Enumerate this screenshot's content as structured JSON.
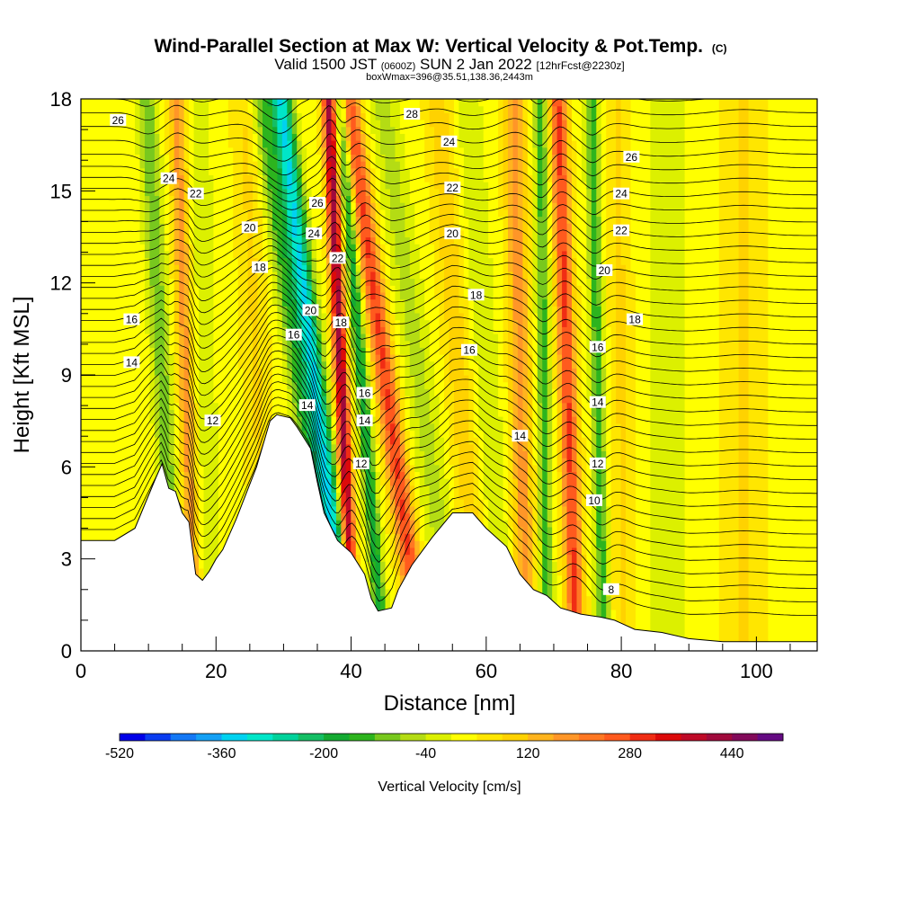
{
  "chart_data": {
    "type": "heatmap",
    "title": "Wind-Parallel Section at Max W: Vertical Velocity & Pot.Temp.",
    "title_mark": "(C)",
    "subtitle_main_a": "Valid 1500 JST",
    "subtitle_small_a": "(0600Z)",
    "subtitle_main_b": "SUN 2 Jan 2022",
    "subtitle_small_b": "[12hrFcst@2230z]",
    "subtitle2": "boxWmax=396@35.51,138.36,2443m",
    "xlabel": "Distance [nm]",
    "ylabel": "Height [Kft MSL]",
    "xlim": [
      0,
      109
    ],
    "ylim": [
      0,
      18
    ],
    "xticks": [
      0,
      20,
      40,
      60,
      80,
      100
    ],
    "yticks": [
      0,
      3,
      6,
      9,
      12,
      15,
      18
    ],
    "colorbar": {
      "label": "Vertical Velocity [cm/s]",
      "min": -520,
      "max": 520,
      "step": 40,
      "tick_labels": [
        "-520",
        "-360",
        "-200",
        "-40",
        "120",
        "280",
        "440"
      ],
      "colors": [
        "#0000e8",
        "#0a3cf0",
        "#1478f5",
        "#14a0f5",
        "#00d2f0",
        "#00e6c8",
        "#00d29b",
        "#14be64",
        "#14aa32",
        "#2db41e",
        "#78c81e",
        "#b4dc14",
        "#dcf000",
        "#ffff00",
        "#ffe600",
        "#ffd200",
        "#ffb41e",
        "#ff9628",
        "#ff7823",
        "#ff5a1e",
        "#f02d14",
        "#dc0a0a",
        "#be0a28",
        "#a00a3c",
        "#820a5a",
        "#640a82"
      ]
    },
    "terrain": [
      [
        0,
        3.6
      ],
      [
        5,
        3.6
      ],
      [
        8,
        4.0
      ],
      [
        11,
        5.6
      ],
      [
        12,
        6.1
      ],
      [
        13,
        5.3
      ],
      [
        14,
        5.2
      ],
      [
        15,
        4.5
      ],
      [
        16,
        4.2
      ],
      [
        17,
        2.5
      ],
      [
        18,
        2.3
      ],
      [
        19,
        2.6
      ],
      [
        20,
        3.0
      ],
      [
        21,
        3.3
      ],
      [
        23,
        4.3
      ],
      [
        26,
        6.0
      ],
      [
        28,
        7.5
      ],
      [
        29,
        7.7
      ],
      [
        31,
        7.6
      ],
      [
        32,
        7.3
      ],
      [
        34,
        6.6
      ],
      [
        35,
        5.5
      ],
      [
        36,
        4.5
      ],
      [
        38,
        3.6
      ],
      [
        40,
        3.2
      ],
      [
        42,
        2.5
      ],
      [
        43,
        1.7
      ],
      [
        44,
        1.3
      ],
      [
        46,
        1.4
      ],
      [
        47,
        2.0
      ],
      [
        49,
        2.8
      ],
      [
        52,
        3.7
      ],
      [
        55,
        4.5
      ],
      [
        58,
        4.5
      ],
      [
        60,
        4.0
      ],
      [
        63,
        3.4
      ],
      [
        65,
        2.5
      ],
      [
        67,
        2.0
      ],
      [
        69,
        1.8
      ],
      [
        71,
        1.4
      ],
      [
        74,
        1.2
      ],
      [
        77,
        1.1
      ],
      [
        79,
        1.0
      ],
      [
        80,
        0.9
      ],
      [
        82,
        0.7
      ],
      [
        86,
        0.6
      ],
      [
        90,
        0.4
      ],
      [
        95,
        0.3
      ],
      [
        100,
        0.3
      ],
      [
        105,
        0.3
      ],
      [
        109,
        0.3
      ]
    ],
    "w_features": [
      {
        "x": 12.0,
        "w": -140,
        "width": 1.4,
        "tilt": -0.25
      },
      {
        "x": 15.5,
        "w": 150,
        "width": 1.2,
        "tilt": -0.15
      },
      {
        "x": 18.5,
        "w": -60,
        "width": 1.5,
        "tilt": -0.1
      },
      {
        "x": 26.0,
        "w": 60,
        "width": 2.0,
        "tilt": -0.2
      },
      {
        "x": 32.0,
        "w": -150,
        "width": 1.5,
        "tilt": -0.6
      },
      {
        "x": 34.5,
        "w": -350,
        "width": 1.6,
        "tilt": -0.55
      },
      {
        "x": 38.5,
        "w": 400,
        "width": 1.0,
        "tilt": -0.2
      },
      {
        "x": 41.5,
        "w": -220,
        "width": 1.0,
        "tilt": -0.35
      },
      {
        "x": 45.0,
        "w": 260,
        "width": 1.6,
        "tilt": -0.6
      },
      {
        "x": 50.0,
        "w": -80,
        "width": 2.2,
        "tilt": -0.6
      },
      {
        "x": 56.0,
        "w": 80,
        "width": 2.0,
        "tilt": -0.35
      },
      {
        "x": 60.0,
        "w": -60,
        "width": 2.0,
        "tilt": -0.3
      },
      {
        "x": 65.0,
        "w": 150,
        "width": 1.6,
        "tilt": -0.1
      },
      {
        "x": 68.5,
        "w": -160,
        "width": 1.0,
        "tilt": -0.05
      },
      {
        "x": 72.0,
        "w": 260,
        "width": 1.3,
        "tilt": -0.15
      },
      {
        "x": 76.5,
        "w": -170,
        "width": 1.0,
        "tilt": -0.1
      },
      {
        "x": 80.0,
        "w": 60,
        "width": 1.8,
        "tilt": -0.05
      },
      {
        "x": 87.0,
        "w": -40,
        "width": 3.5,
        "tilt": 0.0
      },
      {
        "x": 98.0,
        "w": 60,
        "width": 3.0,
        "tilt": 0.0
      }
    ],
    "theta_labels": [
      {
        "text": "26",
        "x": 5.5,
        "y": 17.3
      },
      {
        "text": "24",
        "x": 13.0,
        "y": 15.4
      },
      {
        "text": "22",
        "x": 17.0,
        "y": 14.9
      },
      {
        "text": "20",
        "x": 25.0,
        "y": 13.8
      },
      {
        "text": "18",
        "x": 26.5,
        "y": 12.5
      },
      {
        "text": "16",
        "x": 7.5,
        "y": 10.8
      },
      {
        "text": "14",
        "x": 7.5,
        "y": 9.4
      },
      {
        "text": "12",
        "x": 19.5,
        "y": 7.5
      },
      {
        "text": "26",
        "x": 35.0,
        "y": 14.6
      },
      {
        "text": "24",
        "x": 34.5,
        "y": 13.6
      },
      {
        "text": "20",
        "x": 34.0,
        "y": 11.1
      },
      {
        "text": "16",
        "x": 31.5,
        "y": 10.3
      },
      {
        "text": "14",
        "x": 33.5,
        "y": 8.0
      },
      {
        "text": "22",
        "x": 38.0,
        "y": 12.8
      },
      {
        "text": "18",
        "x": 38.5,
        "y": 10.7
      },
      {
        "text": "16",
        "x": 42.0,
        "y": 8.4
      },
      {
        "text": "14",
        "x": 42.0,
        "y": 7.5
      },
      {
        "text": "12",
        "x": 41.5,
        "y": 6.1
      },
      {
        "text": "28",
        "x": 49.0,
        "y": 17.5
      },
      {
        "text": "24",
        "x": 54.5,
        "y": 16.6
      },
      {
        "text": "22",
        "x": 55.0,
        "y": 15.1
      },
      {
        "text": "20",
        "x": 55.0,
        "y": 13.6
      },
      {
        "text": "18",
        "x": 58.5,
        "y": 11.6
      },
      {
        "text": "16",
        "x": 57.5,
        "y": 9.8
      },
      {
        "text": "14",
        "x": 65.0,
        "y": 7.0
      },
      {
        "text": "26",
        "x": 81.5,
        "y": 16.1
      },
      {
        "text": "24",
        "x": 80.0,
        "y": 14.9
      },
      {
        "text": "22",
        "x": 80.0,
        "y": 13.7
      },
      {
        "text": "20",
        "x": 77.5,
        "y": 12.4
      },
      {
        "text": "18",
        "x": 82.0,
        "y": 10.8
      },
      {
        "text": "16",
        "x": 76.5,
        "y": 9.9
      },
      {
        "text": "14",
        "x": 76.5,
        "y": 8.1
      },
      {
        "text": "12",
        "x": 76.5,
        "y": 6.1
      },
      {
        "text": "10",
        "x": 76.0,
        "y": 4.9
      },
      {
        "text": "8",
        "x": 78.5,
        "y": 2.0
      }
    ]
  }
}
